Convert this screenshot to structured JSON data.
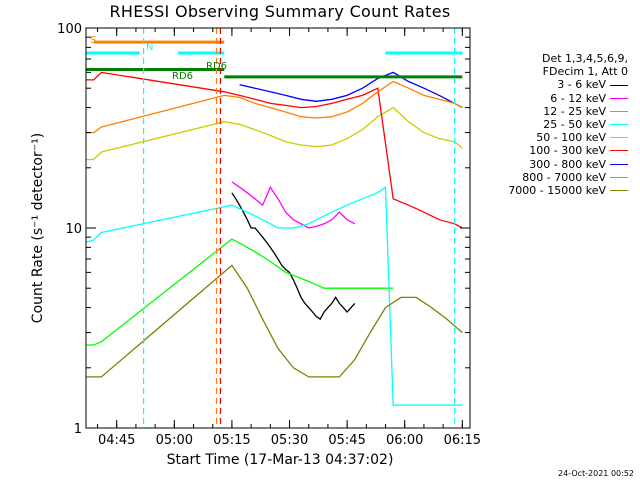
{
  "chart_data": {
    "type": "line",
    "title": "RHESSI Observing Summary Count Rates",
    "xlabel": "Start Time (17-Mar-13 04:37:02)",
    "ylabel": "Count Rate (s⁻¹ detector⁻¹)",
    "yscale": "log",
    "ylim": [
      1,
      100
    ],
    "xlim_minutes_after_0437": [
      0,
      100
    ],
    "x_ticks": [
      {
        "label": "04:45",
        "minute": 8
      },
      {
        "label": "05:00",
        "minute": 23
      },
      {
        "label": "05:15",
        "minute": 38
      },
      {
        "label": "05:30",
        "minute": 53
      },
      {
        "label": "05:45",
        "minute": 68
      },
      {
        "label": "06:00",
        "minute": 83
      },
      {
        "label": "06:15",
        "minute": 98
      }
    ],
    "y_ticks": [
      {
        "label": "1",
        "value": 1
      },
      {
        "label": "10",
        "value": 10
      },
      {
        "label": "100",
        "value": 100
      }
    ],
    "legend_header": [
      "Det 1,3,4,5,6,9,",
      "FDecim 1, Att 0"
    ],
    "legend_placement": "right",
    "grid": false,
    "series": [
      {
        "name": "3 - 6 keV",
        "color": "#000000",
        "x": [
          10,
          11,
          12,
          13,
          14,
          15,
          16,
          17,
          18,
          19,
          20,
          21,
          22,
          23,
          24,
          25,
          26,
          27,
          28,
          29,
          30,
          31,
          32,
          33,
          34,
          35,
          36,
          37,
          38,
          39,
          40,
          41,
          42,
          43,
          44,
          45,
          46,
          47,
          48,
          49,
          50,
          51,
          52,
          53,
          54,
          55,
          56,
          57,
          58,
          59,
          60,
          61,
          62,
          63,
          64,
          65,
          66,
          67,
          68,
          69,
          70,
          71,
          72,
          73,
          74,
          75,
          76,
          77,
          78,
          79,
          80,
          81,
          82,
          83,
          84,
          85,
          86,
          87,
          88,
          89,
          90,
          91,
          92,
          93,
          94,
          95,
          96,
          97,
          98,
          99
        ],
        "y": [
          null,
          null,
          null,
          null,
          null,
          null,
          null,
          null,
          null,
          null,
          null,
          null,
          null,
          null,
          null,
          null,
          null,
          null,
          null,
          null,
          null,
          null,
          null,
          null,
          null,
          null,
          null,
          null,
          15,
          14,
          13,
          12,
          11,
          10,
          10,
          9.5,
          9,
          8.5,
          8,
          7.5,
          7,
          6.5,
          6.2,
          6,
          5.5,
          5,
          4.5,
          4.2,
          4,
          3.8,
          3.6,
          3.5,
          3.8,
          4,
          4.2,
          4.5,
          4.2,
          4,
          3.8,
          4,
          4.2,
          null,
          null,
          null,
          null,
          null,
          null,
          null,
          null,
          null,
          null,
          null,
          null,
          null,
          null,
          null,
          null,
          null,
          null,
          null,
          null,
          null,
          null,
          null,
          null,
          null,
          null,
          null,
          null,
          null
        ]
      },
      {
        "name": "6 - 12 keV",
        "color": "#ff00ff",
        "x": [
          38,
          40,
          42,
          44,
          46,
          48,
          50,
          52,
          54,
          56,
          58,
          60,
          62,
          64,
          66,
          68,
          70
        ],
        "y": [
          17,
          16,
          15,
          14,
          13,
          16,
          14,
          12,
          11,
          10.5,
          10,
          10.2,
          10.5,
          11,
          12,
          11,
          10.5
        ]
      },
      {
        "name": "12 - 25 keV",
        "color": "#00ff00",
        "x": [
          0,
          2,
          4,
          38,
          40,
          42,
          44,
          46,
          48,
          50,
          52,
          54,
          56,
          58,
          60,
          62,
          64,
          66,
          68,
          70,
          72,
          74,
          76,
          78,
          80
        ],
        "y": [
          2.6,
          2.6,
          2.7,
          8.8,
          8.4,
          8,
          7.6,
          7.2,
          6.8,
          6.4,
          6,
          5.8,
          5.6,
          5.4,
          5.2,
          5,
          5,
          5,
          5,
          5,
          5,
          5,
          5,
          5,
          5
        ]
      },
      {
        "name": "25 - 50 keV",
        "color": "#00ffff",
        "x": [
          0,
          2,
          4,
          38,
          40,
          42,
          44,
          46,
          48,
          50,
          52,
          54,
          56,
          58,
          60,
          62,
          64,
          66,
          68,
          70,
          72,
          74,
          76,
          78,
          80,
          82,
          84,
          86,
          88,
          90,
          92,
          94,
          96,
          98
        ],
        "y": [
          8.5,
          8.7,
          9.5,
          13,
          12.5,
          12,
          11.5,
          11,
          10.5,
          10,
          10,
          10,
          10.2,
          10.5,
          11,
          11.5,
          12,
          12.5,
          13,
          13.5,
          14,
          14.5,
          15,
          16,
          1.3,
          1.3,
          1.3,
          1.3,
          1.3,
          1.3,
          1.3,
          1.3,
          1.3,
          1.3
        ]
      },
      {
        "name": "50 - 100 keV",
        "color": "#cccc00",
        "x": [
          0,
          2,
          4,
          36,
          40,
          44,
          48,
          52,
          56,
          60,
          64,
          68,
          72,
          76,
          80,
          84,
          88,
          92,
          96,
          98
        ],
        "y": [
          22,
          22,
          24,
          34,
          33,
          31,
          29,
          27,
          26,
          25.5,
          26,
          28,
          31,
          36,
          40,
          34,
          30,
          28,
          27,
          25
        ]
      },
      {
        "name": "100 - 300 keV",
        "color": "#ff0000",
        "x": [
          0,
          2,
          4,
          36,
          40,
          44,
          48,
          52,
          56,
          60,
          64,
          68,
          72,
          76,
          80,
          84,
          88,
          92,
          96,
          98
        ],
        "y": [
          55,
          55,
          60,
          48,
          46,
          44,
          42,
          41,
          40,
          40.5,
          42,
          44,
          46,
          50,
          14,
          13,
          12,
          11,
          10.5,
          10
        ]
      },
      {
        "name": "300 - 800 keV",
        "color": "#0000ff",
        "x": [
          40,
          44,
          48,
          52,
          56,
          60,
          64,
          68,
          72,
          76,
          80,
          84,
          88,
          92,
          96,
          98
        ],
        "y": [
          52,
          50,
          48,
          46,
          44,
          43,
          44,
          46,
          50,
          56,
          60,
          54,
          50,
          46,
          42,
          40
        ]
      },
      {
        "name": "800 - 7000 keV",
        "color": "#ff8000",
        "x": [
          0,
          2,
          4,
          36,
          40,
          44,
          48,
          52,
          56,
          60,
          64,
          68,
          72,
          76,
          80,
          84,
          88,
          92,
          96,
          98
        ],
        "y": [
          30,
          30,
          32,
          46,
          45,
          42,
          40,
          38,
          36,
          35.5,
          36,
          38,
          42,
          48,
          54,
          50,
          46,
          44,
          42,
          40
        ]
      },
      {
        "name": "7000 - 15000 keV",
        "color": "#808000",
        "x": [
          0,
          2,
          4,
          38,
          42,
          46,
          50,
          54,
          58,
          62,
          66,
          70,
          74,
          78,
          82,
          86,
          90,
          94,
          98
        ],
        "y": [
          1.8,
          1.8,
          1.8,
          6.5,
          5,
          3.5,
          2.5,
          2,
          1.8,
          1.8,
          1.8,
          2.2,
          3,
          4,
          4.5,
          4.5,
          4,
          3.5,
          3
        ]
      }
    ],
    "reference_lines": [
      {
        "label": "RD6",
        "color": "#008000",
        "y": 62,
        "x_start": 0,
        "x_end": 36
      },
      {
        "label": "",
        "color": "#008000",
        "y": 57,
        "x_start": 36,
        "x_end": 98
      },
      {
        "label": "S",
        "color": "#ff8000",
        "y": 85,
        "x_start": 2,
        "x_end": 36
      },
      {
        "label": "N",
        "color": "#00ffff",
        "y": 75,
        "x_start": 0,
        "x_end": 14
      },
      {
        "label": "",
        "color": "#00ffff",
        "y": 75,
        "x_start": 24,
        "x_end": 36
      },
      {
        "label": "",
        "color": "#00ffff",
        "y": 75,
        "x_start": 78,
        "x_end": 98
      }
    ],
    "vertical_markers": [
      {
        "x": 15,
        "color": "#00ffff",
        "style": "dashed"
      },
      {
        "x": 34,
        "color": "#ff8000",
        "style": "dashed"
      },
      {
        "x": 35,
        "color": "#ff0000",
        "style": "dashed"
      },
      {
        "x": 96,
        "color": "#00ffff",
        "style": "dashed"
      }
    ]
  },
  "timestamp": "24-Oct-2021 00:52",
  "annotations": [
    {
      "text": "S",
      "color": "#ff8000"
    },
    {
      "text": "N",
      "color": "#00ffff"
    },
    {
      "text": "RD6",
      "color": "#008000"
    },
    {
      "text": "RD6",
      "color": "#008000"
    }
  ]
}
